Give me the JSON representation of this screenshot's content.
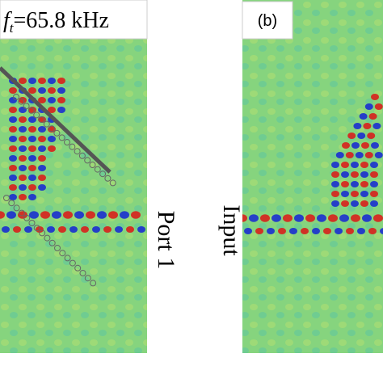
{
  "panels": [
    {
      "label": {
        "symbol": "f",
        "subscript": "t",
        "text": "=65.8 kHz"
      },
      "side_label": "Port 1"
    },
    {
      "label": {
        "text": "(b)"
      },
      "side_label": "Input"
    }
  ]
}
